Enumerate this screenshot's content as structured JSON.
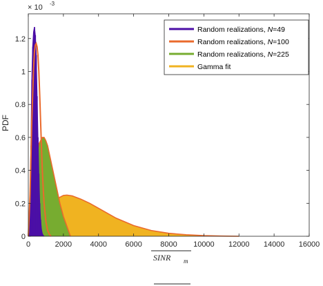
{
  "chart_data": {
    "type": "area",
    "title": "",
    "xlabel": "SINR",
    "xlabel_subscript": "m",
    "ylabel": "PDF",
    "y_exponent_label": "× 10",
    "y_exponent_value": "-3",
    "xlim": [
      0,
      16000
    ],
    "ylim": [
      0,
      1.35
    ],
    "x_ticks": [
      0,
      2000,
      4000,
      6000,
      8000,
      10000,
      12000,
      14000,
      16000
    ],
    "y_ticks": [
      0,
      0.2,
      0.4,
      0.6,
      0.8,
      1,
      1.2
    ],
    "grid": false,
    "legend_position": "top-right",
    "series": [
      {
        "name": "Random realizations,  N=49",
        "legend_prefix": "Random realizations,  ",
        "legend_var": "N",
        "legend_suffix": "=49",
        "color": "#4b0ea6",
        "kind": "histogram",
        "x": [
          0,
          50,
          100,
          150,
          200,
          250,
          300,
          350,
          400,
          450,
          500,
          550,
          600,
          650,
          700,
          750,
          800,
          850,
          900
        ],
        "y": [
          0,
          0.02,
          0.2,
          0.55,
          0.95,
          1.15,
          1.24,
          1.27,
          1.22,
          1.1,
          0.85,
          0.6,
          0.38,
          0.2,
          0.1,
          0.04,
          0.015,
          0.005,
          0
        ]
      },
      {
        "name": "Random realizations,  N=100",
        "legend_prefix": "Random realizations,  ",
        "legend_var": "N",
        "legend_suffix": "=100",
        "color": "#ea6a2c",
        "kind": "line",
        "x": [
          0,
          100,
          200,
          300,
          350,
          400,
          450,
          500,
          550,
          600,
          650,
          700,
          750,
          800,
          850,
          900,
          1000,
          1100,
          1200,
          1300
        ],
        "y": [
          0,
          0.25,
          0.7,
          1.02,
          1.12,
          1.16,
          1.17,
          1.15,
          1.1,
          1.0,
          0.86,
          0.7,
          0.54,
          0.4,
          0.29,
          0.2,
          0.09,
          0.035,
          0.012,
          0
        ]
      },
      {
        "name": "Random realizations,  N=225",
        "legend_prefix": "Random realizations,  ",
        "legend_var": "N",
        "legend_suffix": "=225",
        "color": "#77ac30",
        "kind": "area",
        "x": [
          0,
          200,
          400,
          600,
          800,
          900,
          1000,
          1100,
          1200,
          1400,
          1600,
          1800,
          2000,
          2200,
          2400
        ],
        "y": [
          0,
          0.12,
          0.4,
          0.56,
          0.6,
          0.6,
          0.58,
          0.55,
          0.5,
          0.4,
          0.3,
          0.2,
          0.12,
          0.06,
          0
        ]
      },
      {
        "name": "Gamma fit",
        "legend_prefix": "Gamma fit",
        "legend_var": "",
        "legend_suffix": "",
        "color": "#f0b321",
        "kind": "area",
        "x": [
          0,
          500,
          1000,
          1500,
          2000,
          2200,
          2500,
          3000,
          3500,
          4000,
          5000,
          6000,
          7000,
          8000,
          9000,
          10000,
          11000,
          12000
        ],
        "y": [
          0,
          0.05,
          0.15,
          0.22,
          0.248,
          0.25,
          0.245,
          0.225,
          0.2,
          0.17,
          0.11,
          0.065,
          0.035,
          0.018,
          0.009,
          0.004,
          0.0015,
          0
        ]
      }
    ]
  }
}
